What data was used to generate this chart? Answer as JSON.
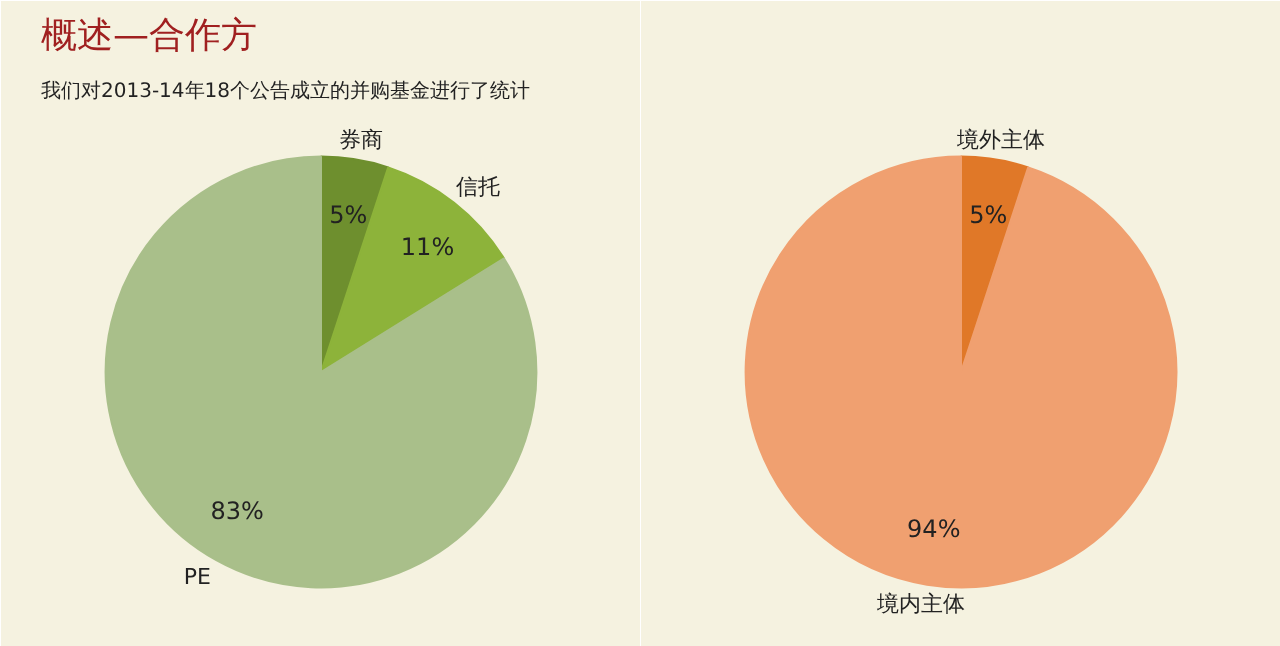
{
  "chart_data": [
    {
      "type": "pie",
      "title": "概述—合作方",
      "subtitle": "我们对2013-14年18个公告成立的并购基金进行了统计",
      "categories": [
        "券商",
        "信托",
        "PE"
      ],
      "values": [
        5,
        11,
        83
      ],
      "value_labels": [
        "5%",
        "11%",
        "83%"
      ],
      "colors": [
        "#6e8f2e",
        "#8db33a",
        "#a9bf8a"
      ]
    },
    {
      "type": "pie",
      "categories": [
        "境外主体",
        "境内主体"
      ],
      "values": [
        5,
        94
      ],
      "value_labels": [
        "5%",
        "94%"
      ],
      "colors": [
        "#e07828",
        "#f0a070"
      ]
    }
  ]
}
